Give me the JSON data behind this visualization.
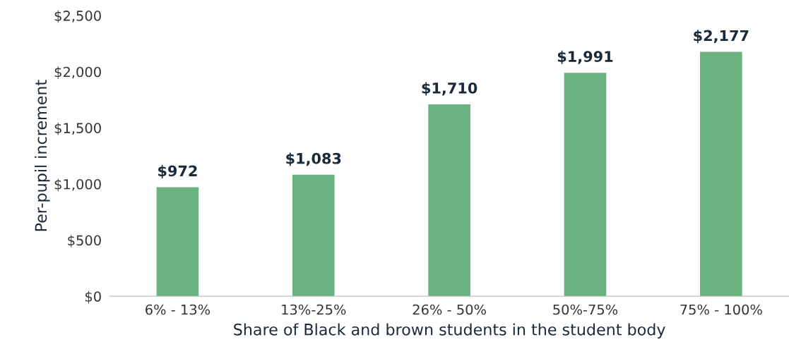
{
  "chart_data": {
    "type": "bar",
    "xlabel": "Share of Black and brown students in the student body",
    "ylabel": "Per-pupil increment",
    "categories": [
      "6% - 13%",
      "13%-25%",
      "26% - 50%",
      "50%-75%",
      "75% - 100%"
    ],
    "values": [
      972,
      1083,
      1710,
      1991,
      2177
    ],
    "value_labels": [
      "$972",
      "$1,083",
      "$1,710",
      "$1,991",
      "$2,177"
    ],
    "color": "#6ab27f",
    "ylim": [
      0,
      2500
    ],
    "yticks": [
      {
        "value": 0,
        "label": "$0"
      },
      {
        "value": 500,
        "label": "$500"
      },
      {
        "value": 1000,
        "label": "$1,000"
      },
      {
        "value": 1500,
        "label": "$1,500"
      },
      {
        "value": 2000,
        "label": "$2,000"
      },
      {
        "value": 2500,
        "label": "$2,500"
      }
    ],
    "grid": false,
    "legend": false
  }
}
